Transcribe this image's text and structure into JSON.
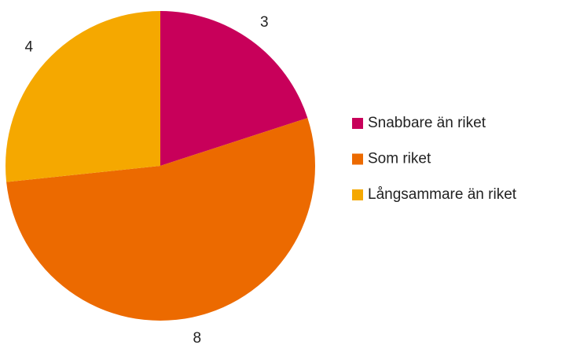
{
  "chart_data": {
    "type": "pie",
    "categories": [
      "Snabbare än riket",
      "Som riket",
      "Långsammare än riket"
    ],
    "values": [
      3,
      8,
      4
    ],
    "colors": [
      "#c8005a",
      "#ec6a00",
      "#f5a800"
    ],
    "legend": "right"
  }
}
